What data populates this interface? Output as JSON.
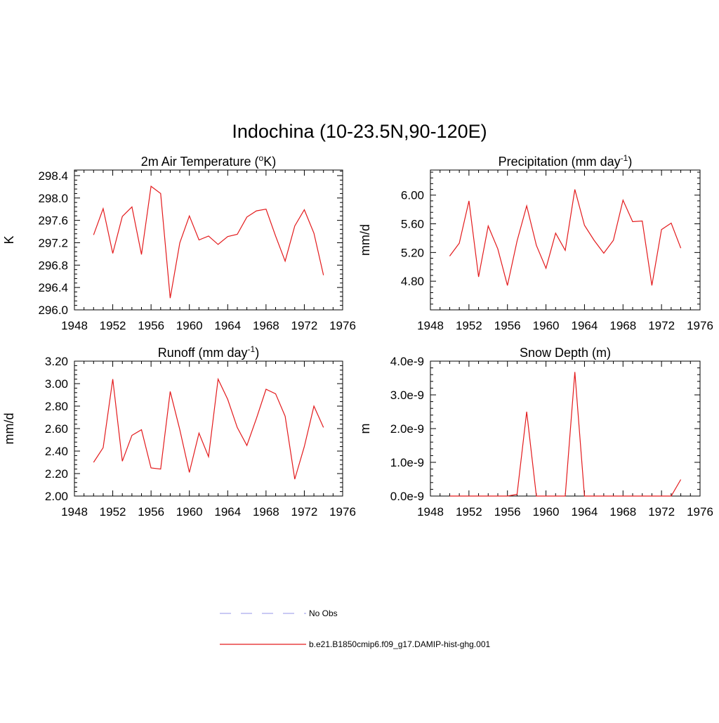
{
  "figure": {
    "title": "Indochina (10-23.5N,90-120E)"
  },
  "legend": {
    "items": [
      {
        "label": "No Obs",
        "style": "dashed",
        "color": "#aaaaee"
      },
      {
        "label": "b.e21.B1850cmip6.f09_g17.DAMIP-hist-ghg.001",
        "style": "solid",
        "color": "#e31a1c"
      }
    ]
  },
  "colors": {
    "series": "#e31a1c",
    "axis": "#000000"
  },
  "chart_data": [
    {
      "type": "line",
      "title": "2m Air Temperature (°K)",
      "title_parts": [
        "2m Air Temperature (",
        "o",
        "K)"
      ],
      "ylabel": "K",
      "xlim": [
        1948,
        1976
      ],
      "ylim": [
        296.0,
        298.5
      ],
      "xticks": [
        1948,
        1952,
        1956,
        1960,
        1964,
        1968,
        1972,
        1976
      ],
      "xtick_labels": [
        "1948",
        "1952",
        "1956",
        "1960",
        "1964",
        "1968",
        "1972",
        "1976"
      ],
      "yticks": [
        296.0,
        296.4,
        296.8,
        297.2,
        297.6,
        298.0,
        298.4
      ],
      "ytick_labels": [
        "296.0",
        "296.4",
        "296.8",
        "297.2",
        "297.6",
        "298.0",
        "298.4"
      ],
      "x": [
        1950,
        1951,
        1952,
        1953,
        1954,
        1955,
        1956,
        1957,
        1958,
        1959,
        1960,
        1961,
        1962,
        1963,
        1964,
        1965,
        1966,
        1967,
        1968,
        1969,
        1970,
        1971,
        1972,
        1973,
        1974
      ],
      "series": [
        {
          "values": [
            297.34,
            297.81,
            297.01,
            297.67,
            297.84,
            296.99,
            298.21,
            298.08,
            296.21,
            297.2,
            297.68,
            297.25,
            297.32,
            297.17,
            297.31,
            297.35,
            297.66,
            297.77,
            297.8,
            297.32,
            296.87,
            297.5,
            297.79,
            297.37,
            296.62
          ]
        }
      ]
    },
    {
      "type": "line",
      "title": "Precipitation (mm day-1)",
      "title_parts": [
        "Precipitation (mm day",
        "-1",
        ")"
      ],
      "ylabel": "mm/d",
      "xlim": [
        1948,
        1976
      ],
      "ylim": [
        4.4,
        6.35
      ],
      "xticks": [
        1948,
        1952,
        1956,
        1960,
        1964,
        1968,
        1972,
        1976
      ],
      "xtick_labels": [
        "1948",
        "1952",
        "1956",
        "1960",
        "1964",
        "1968",
        "1972",
        "1976"
      ],
      "yticks": [
        4.8,
        5.2,
        5.6,
        6.0
      ],
      "ytick_labels": [
        "4.80",
        "5.20",
        "5.60",
        "6.00"
      ],
      "x": [
        1950,
        1951,
        1952,
        1953,
        1954,
        1955,
        1956,
        1957,
        1958,
        1959,
        1960,
        1961,
        1962,
        1963,
        1964,
        1965,
        1966,
        1967,
        1968,
        1969,
        1970,
        1971,
        1972,
        1973,
        1974
      ],
      "series": [
        {
          "values": [
            5.15,
            5.33,
            5.92,
            4.86,
            5.57,
            5.25,
            4.74,
            5.36,
            5.85,
            5.3,
            4.98,
            5.47,
            5.23,
            6.08,
            5.58,
            5.37,
            5.19,
            5.37,
            5.93,
            5.63,
            5.64,
            4.74,
            5.52,
            5.61,
            5.26
          ]
        }
      ]
    },
    {
      "type": "line",
      "title": "Runoff (mm day-1)",
      "title_parts": [
        "Runoff (mm day",
        "-1",
        ")"
      ],
      "ylabel": "mm/d",
      "xlim": [
        1948,
        1976
      ],
      "ylim": [
        2.0,
        3.2
      ],
      "xticks": [
        1948,
        1952,
        1956,
        1960,
        1964,
        1968,
        1972,
        1976
      ],
      "xtick_labels": [
        "1948",
        "1952",
        "1956",
        "1960",
        "1964",
        "1968",
        "1972",
        "1976"
      ],
      "yticks": [
        2.0,
        2.2,
        2.4,
        2.6,
        2.8,
        3.0,
        3.2
      ],
      "ytick_labels": [
        "2.00",
        "2.20",
        "2.40",
        "2.60",
        "2.80",
        "3.00",
        "3.20"
      ],
      "x": [
        1950,
        1951,
        1952,
        1953,
        1954,
        1955,
        1956,
        1957,
        1958,
        1959,
        1960,
        1961,
        1962,
        1963,
        1964,
        1965,
        1966,
        1967,
        1968,
        1969,
        1970,
        1971,
        1972,
        1973,
        1974
      ],
      "series": [
        {
          "values": [
            2.3,
            2.43,
            3.04,
            2.31,
            2.54,
            2.59,
            2.25,
            2.24,
            2.93,
            2.59,
            2.21,
            2.56,
            2.35,
            3.04,
            2.86,
            2.61,
            2.45,
            2.69,
            2.95,
            2.91,
            2.71,
            2.15,
            2.44,
            2.8,
            2.61
          ]
        }
      ]
    },
    {
      "type": "line",
      "title": "Snow Depth (m)",
      "title_parts": [
        "Snow Depth (m)",
        "",
        ""
      ],
      "ylabel": "m",
      "xlim": [
        1948,
        1976
      ],
      "ylim": [
        0,
        4e-09
      ],
      "xticks": [
        1948,
        1952,
        1956,
        1960,
        1964,
        1968,
        1972,
        1976
      ],
      "xtick_labels": [
        "1948",
        "1952",
        "1956",
        "1960",
        "1964",
        "1968",
        "1972",
        "1976"
      ],
      "yticks": [
        0,
        1e-09,
        2e-09,
        3e-09,
        4e-09
      ],
      "ytick_labels": [
        "0.0e-9",
        "1.0e-9",
        "2.0e-9",
        "3.0e-9",
        "4.0e-9"
      ],
      "x": [
        1950,
        1951,
        1952,
        1953,
        1954,
        1955,
        1956,
        1957,
        1958,
        1959,
        1960,
        1961,
        1962,
        1963,
        1964,
        1965,
        1966,
        1967,
        1968,
        1969,
        1970,
        1971,
        1972,
        1973,
        1974
      ],
      "series": [
        {
          "values": [
            0,
            0,
            0,
            0,
            0,
            0,
            0,
            5e-11,
            2.5e-09,
            0,
            0,
            0,
            0,
            3.68e-09,
            0,
            0,
            0,
            0,
            0,
            0,
            0,
            0,
            0,
            0,
            4.9e-10
          ]
        }
      ]
    }
  ]
}
